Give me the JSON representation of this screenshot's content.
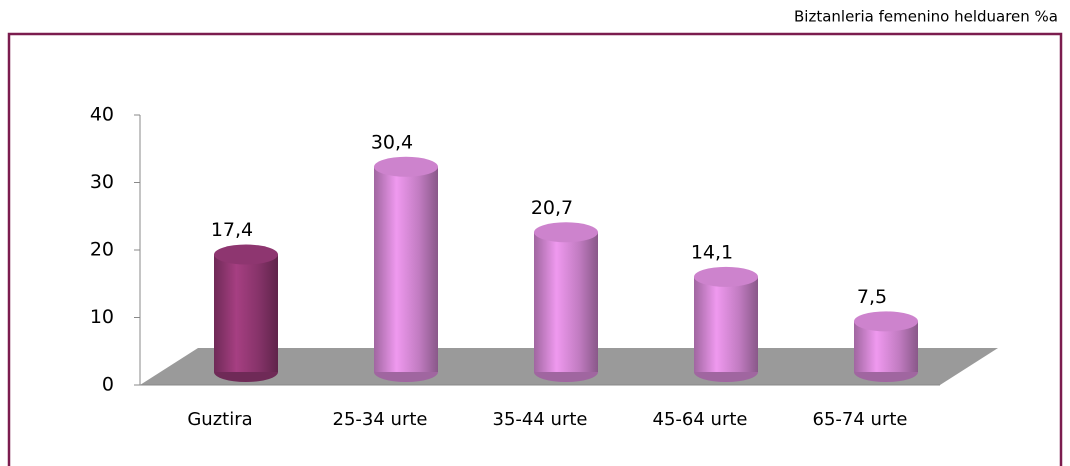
{
  "chart_data": {
    "type": "bar",
    "subtitle": "Biztanleria femenino helduaren %a",
    "categories": [
      "Guztira",
      "25-34 urte",
      "35-44 urte",
      "45-64 urte",
      "65-74 urte"
    ],
    "values": [
      17.4,
      30.4,
      20.7,
      14.1,
      7.5
    ],
    "value_labels": [
      "17,4",
      "30,4",
      "20,7",
      "14,1",
      "7,5"
    ],
    "colors": [
      "#9e3c7c",
      "#e492e4",
      "#e492e4",
      "#e492e4",
      "#e492e4"
    ],
    "ylim": [
      0,
      40
    ],
    "yticks": [
      0,
      10,
      20,
      30,
      40
    ],
    "grid": false
  }
}
